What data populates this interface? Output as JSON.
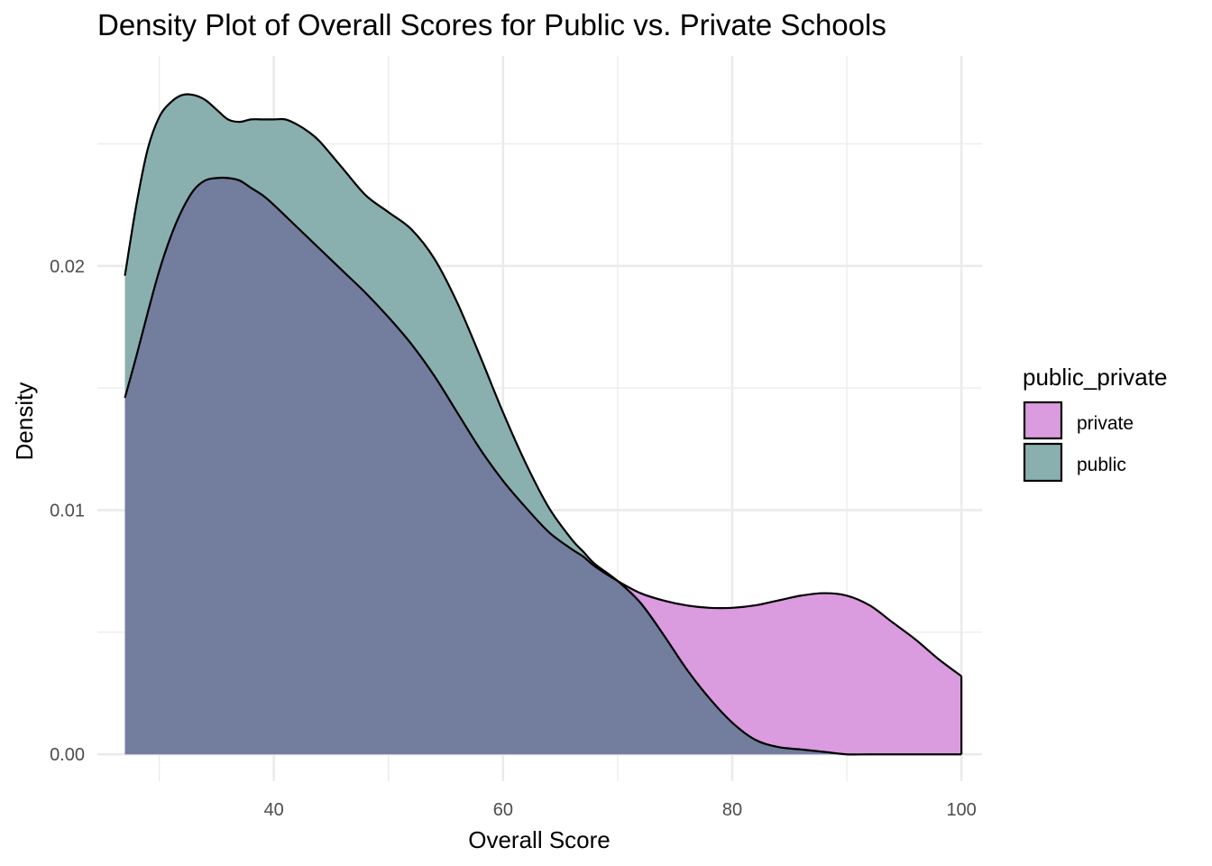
{
  "chart_data": {
    "type": "area",
    "title": "Density Plot of Overall Scores for Public vs. Private Schools",
    "xlabel": "Overall Score",
    "ylabel": "Density",
    "xlim": [
      24.6,
      101.8
    ],
    "ylim": [
      -0.0011,
      0.0286
    ],
    "x_ticks": [
      40,
      60,
      80,
      100
    ],
    "x_tick_labels": [
      "40",
      "60",
      "80",
      "100"
    ],
    "x_minor_ticks": [
      30,
      50,
      70,
      90
    ],
    "y_ticks": [
      0.0,
      0.01,
      0.02
    ],
    "y_tick_labels": [
      "0.00",
      "0.01",
      "0.02"
    ],
    "y_minor_ticks": [
      0.005,
      0.015,
      0.025
    ],
    "grid": true,
    "legend": {
      "title": "public_private",
      "position": "right"
    },
    "series": [
      {
        "name": "private",
        "color": "#d18ad9",
        "opacity": 0.85,
        "x": [
          27,
          28,
          29,
          30,
          31,
          32,
          33,
          34,
          35,
          36,
          37,
          38,
          39,
          40,
          42,
          44,
          46,
          48,
          50,
          52,
          54,
          56,
          58,
          60,
          62,
          64,
          66,
          67,
          68,
          70,
          72,
          74,
          76,
          78,
          80,
          82,
          84,
          86,
          88,
          90,
          92,
          94,
          96,
          98,
          100
        ],
        "y": [
          0.0146,
          0.0163,
          0.0181,
          0.0198,
          0.0212,
          0.0223,
          0.0231,
          0.0235,
          0.0236,
          0.0236,
          0.0235,
          0.0232,
          0.0229,
          0.0225,
          0.0216,
          0.0207,
          0.0198,
          0.0189,
          0.0179,
          0.0168,
          0.0155,
          0.014,
          0.0125,
          0.0112,
          0.0101,
          0.0091,
          0.0084,
          0.0081,
          0.0077,
          0.0071,
          0.0066,
          0.0063,
          0.0061,
          0.006,
          0.006,
          0.0061,
          0.0063,
          0.0065,
          0.0066,
          0.0065,
          0.0061,
          0.0054,
          0.0047,
          0.0039,
          0.0032
        ]
      },
      {
        "name": "public",
        "color": "#5c9996",
        "opacity": 0.72,
        "x": [
          27,
          28,
          29,
          30,
          31,
          32,
          33,
          34,
          35,
          36,
          37,
          38,
          39,
          40,
          41,
          42,
          43,
          44,
          46,
          48,
          50,
          52,
          54,
          56,
          58,
          60,
          62,
          64,
          66,
          67,
          68,
          70,
          72,
          74,
          76,
          78,
          80,
          82,
          84,
          86,
          88,
          90,
          92,
          94,
          96,
          98,
          100
        ],
        "y": [
          0.0196,
          0.0225,
          0.0248,
          0.0261,
          0.0267,
          0.027,
          0.027,
          0.0268,
          0.0264,
          0.026,
          0.0259,
          0.026,
          0.026,
          0.026,
          0.026,
          0.0258,
          0.0255,
          0.0251,
          0.024,
          0.0229,
          0.0222,
          0.0215,
          0.0203,
          0.0185,
          0.0163,
          0.014,
          0.0119,
          0.0101,
          0.0088,
          0.0083,
          0.0078,
          0.0071,
          0.0062,
          0.0049,
          0.0035,
          0.0023,
          0.0013,
          0.0006,
          0.0003,
          0.0002,
          0.0001,
          0.0,
          0.0,
          0.0,
          0.0,
          0.0,
          0.0
        ]
      }
    ],
    "overlap_color": "#737d9e"
  }
}
